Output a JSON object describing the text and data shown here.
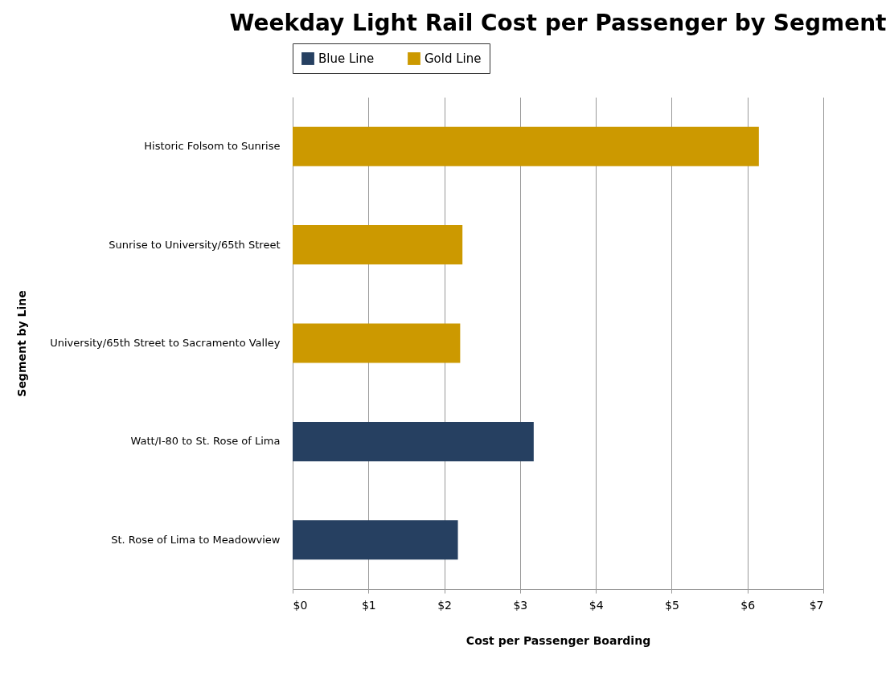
{
  "chart_data": {
    "type": "bar",
    "orientation": "horizontal",
    "title": "Weekday Light Rail Cost per Passenger by Segment",
    "xlabel": "Cost per Passenger Boarding",
    "ylabel": "Segment by Line",
    "categories": [
      "Historic Folsom to Sunrise",
      "Sunrise to University/65th Street",
      "University/65th Street to Sacramento Valley",
      "Watt/I-80 to St. Rose of Lima",
      "St. Rose of Lima to Meadowview"
    ],
    "series": [
      {
        "name": "Blue Line",
        "color": "#264061",
        "values": [
          null,
          null,
          null,
          3.18,
          2.18
        ]
      },
      {
        "name": "Gold Line",
        "color": "#cc9900",
        "values": [
          6.15,
          2.24,
          2.21,
          null,
          null
        ]
      }
    ],
    "xlim": [
      0,
      7
    ],
    "xticks": [
      {
        "value": 0,
        "label": "$0"
      },
      {
        "value": 1,
        "label": "$1"
      },
      {
        "value": 2,
        "label": "$2"
      },
      {
        "value": 3,
        "label": "$3"
      },
      {
        "value": 4,
        "label": "$4"
      },
      {
        "value": 5,
        "label": "$5"
      },
      {
        "value": 6,
        "label": "$6"
      },
      {
        "value": 7,
        "label": "$7"
      }
    ],
    "grid": "x",
    "legend": "top"
  }
}
